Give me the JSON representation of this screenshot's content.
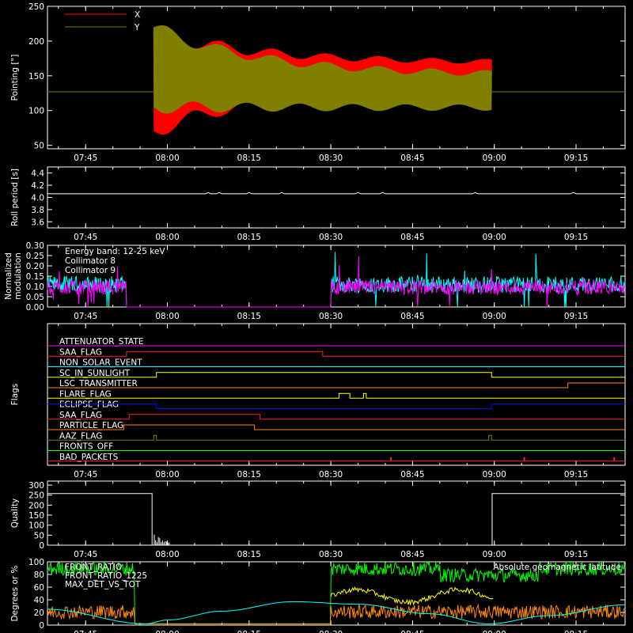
{
  "time_ticks": [
    "07:45",
    "08:00",
    "08:15",
    "08:30",
    "08:45",
    "09:00",
    "09:15"
  ],
  "time_tick_minutes": [
    465,
    480,
    495,
    510,
    525,
    540,
    555
  ],
  "time_range_minutes": [
    458,
    564
  ],
  "colors": {
    "background": "#000000",
    "axis": "#ffffff",
    "x_pointing": "#ff0000",
    "y_pointing": "#808000",
    "collimator8": "#00ffff",
    "collimator9": "#ff00ff",
    "front_ratio": "#00ff00",
    "front_ratio_1225": "#ffff00",
    "max_det_vs_tot": "#ff8800",
    "geomag_latitude": "#00ffff"
  },
  "chart_data": [
    {
      "type": "line",
      "panel": "pointing",
      "ylabel": "Pointing [\"]",
      "ylim": [
        45,
        250
      ],
      "yticks": [
        50,
        100,
        150,
        200,
        250
      ],
      "series": [
        {
          "name": "X",
          "color": "#ff0000",
          "baseline": 127,
          "x_range": [
            477.5,
            539.5
          ],
          "start_min": 58,
          "start_max": 225,
          "mid_min": 130,
          "mid_max": 172,
          "end_min": 140,
          "end_max": 172
        },
        {
          "name": "Y",
          "color": "#808000",
          "baseline": 127,
          "x_range": [
            477.5,
            539.5
          ],
          "start_min": 95,
          "start_max": 230,
          "mid_min": 100,
          "mid_max": 155,
          "end_min": 100,
          "end_max": 150
        }
      ]
    },
    {
      "type": "line",
      "panel": "roll_period",
      "ylabel": "Roll period [s]",
      "ylim": [
        3.5,
        4.5
      ],
      "yticks": [
        3.6,
        3.8,
        4.0,
        4.2,
        4.4
      ],
      "series": [
        {
          "name": "",
          "color": "#ffffff",
          "x": [
            458,
            564
          ],
          "y": [
            4.06,
            4.06
          ]
        }
      ]
    },
    {
      "type": "line",
      "panel": "modulation",
      "ylabel": "Normalized modulation",
      "ylim": [
        0.0,
        0.3
      ],
      "yticks": [
        0.0,
        0.05,
        0.1,
        0.15,
        0.2,
        0.25,
        0.3
      ],
      "annotation": "Energy band: 12-25 keV",
      "series": [
        {
          "name": "Collimator 8",
          "color": "#00ffff",
          "noise_min": 0.07,
          "noise_max": 0.15
        },
        {
          "name": "Collimator 9",
          "color": "#ff00ff",
          "noise_min": 0.06,
          "noise_max": 0.13
        }
      ],
      "active_intervals": [
        [
          458,
          472.5
        ],
        [
          510,
          564
        ]
      ]
    },
    {
      "type": "line",
      "panel": "flags",
      "ylabel": "Flags",
      "flags": [
        {
          "name": "ATTENUATOR_STATE",
          "color": "#ff00ff",
          "transitions": []
        },
        {
          "name": "SAA_FLAG",
          "color": "#ff2020",
          "transitions": [
            [
              472.5,
              1
            ],
            [
              508.5,
              0
            ]
          ]
        },
        {
          "name": "NON_SOLAR_EVENT",
          "color": "#00ffff",
          "transitions": []
        },
        {
          "name": "SC_IN_SUNLIGHT",
          "color": "#ffff00",
          "transitions": [
            [
              478,
              1
            ],
            [
              539.5,
              0
            ]
          ]
        },
        {
          "name": "LSC_TRANSMITTER",
          "color": "#ff8800",
          "transitions": [
            [
              553.5,
              1
            ]
          ]
        },
        {
          "name": "FLARE_FLAG",
          "color": "#ffff00",
          "transitions": [
            [
              511.5,
              1
            ],
            [
              513.5,
              0
            ],
            [
              516,
              1
            ],
            [
              516.5,
              0
            ]
          ]
        },
        {
          "name": "ECLIPSE_FLAG",
          "color": "#0000ff",
          "transitions": [
            [
              478,
              0
            ],
            [
              539.5,
              1
            ]
          ]
        },
        {
          "name": "SAA_FLAG",
          "color": "#ff2020",
          "transitions": [
            [
              473,
              1
            ],
            [
              497,
              0
            ]
          ]
        },
        {
          "name": "PARTICLE_FLAG",
          "color": "#ff8800",
          "transitions": [
            [
              472,
              1
            ],
            [
              496,
              0
            ]
          ]
        },
        {
          "name": "AAZ_FLAG",
          "color": "#808000",
          "transitions": [
            [
              477.5,
              1
            ],
            [
              478,
              0
            ],
            [
              539,
              1
            ],
            [
              539.5,
              0
            ]
          ]
        },
        {
          "name": "FRONTS_OFF",
          "color": "#00ff00",
          "transitions": []
        },
        {
          "name": "BAD_PACKETS",
          "color": "#ff2020",
          "spikes": [
            521,
            545.5,
            562
          ]
        }
      ]
    },
    {
      "type": "line",
      "panel": "quality",
      "ylabel": "Quality",
      "ylim": [
        0,
        320
      ],
      "yticks": [
        0,
        50,
        100,
        150,
        200,
        250,
        300
      ],
      "series": [
        {
          "name": "",
          "color": "#ffffff",
          "x": [
            458,
            477.2,
            477.2,
            539.6,
            539.6,
            564
          ],
          "y": [
            258,
            258,
            0,
            0,
            258,
            258
          ]
        }
      ]
    },
    {
      "type": "line",
      "panel": "ratios",
      "ylabel": "Degrees or %",
      "ylim": [
        0,
        100
      ],
      "yticks": [
        0,
        20,
        40,
        60,
        80,
        100
      ],
      "annotation": "Absolute geomagnetic latitude",
      "series": [
        {
          "name": "FRONT_RATIO",
          "color": "#00ff00"
        },
        {
          "name": "FRONT_RATIO_1225",
          "color": "#ffff00"
        },
        {
          "name": "MAX_DET_VS_TOT",
          "color": "#ff8800"
        }
      ],
      "geomag_latitude": {
        "x": [
          458,
          476,
          480,
          490,
          503,
          515,
          528,
          539,
          550,
          564
        ],
        "y": [
          25,
          2,
          8,
          22,
          37,
          33,
          18,
          2,
          15,
          32
        ]
      }
    }
  ],
  "panels": {
    "pointing_labels": [
      "X",
      "Y"
    ],
    "modulation_labels": [
      "Energy band: 12-25 keV",
      "Collimator 8",
      "Collimator 9"
    ],
    "ratio_labels": [
      "FRONT_RATIO",
      "FRONT_RATIO_1225",
      "MAX_DET_VS_TOT",
      "Absolute geomagnetic latitude"
    ]
  },
  "y_axis_titles": [
    "Pointing [\"]",
    "Roll period [s]",
    "Normalized\nmodulation",
    "Flags",
    "Quality",
    "Degrees or %"
  ]
}
